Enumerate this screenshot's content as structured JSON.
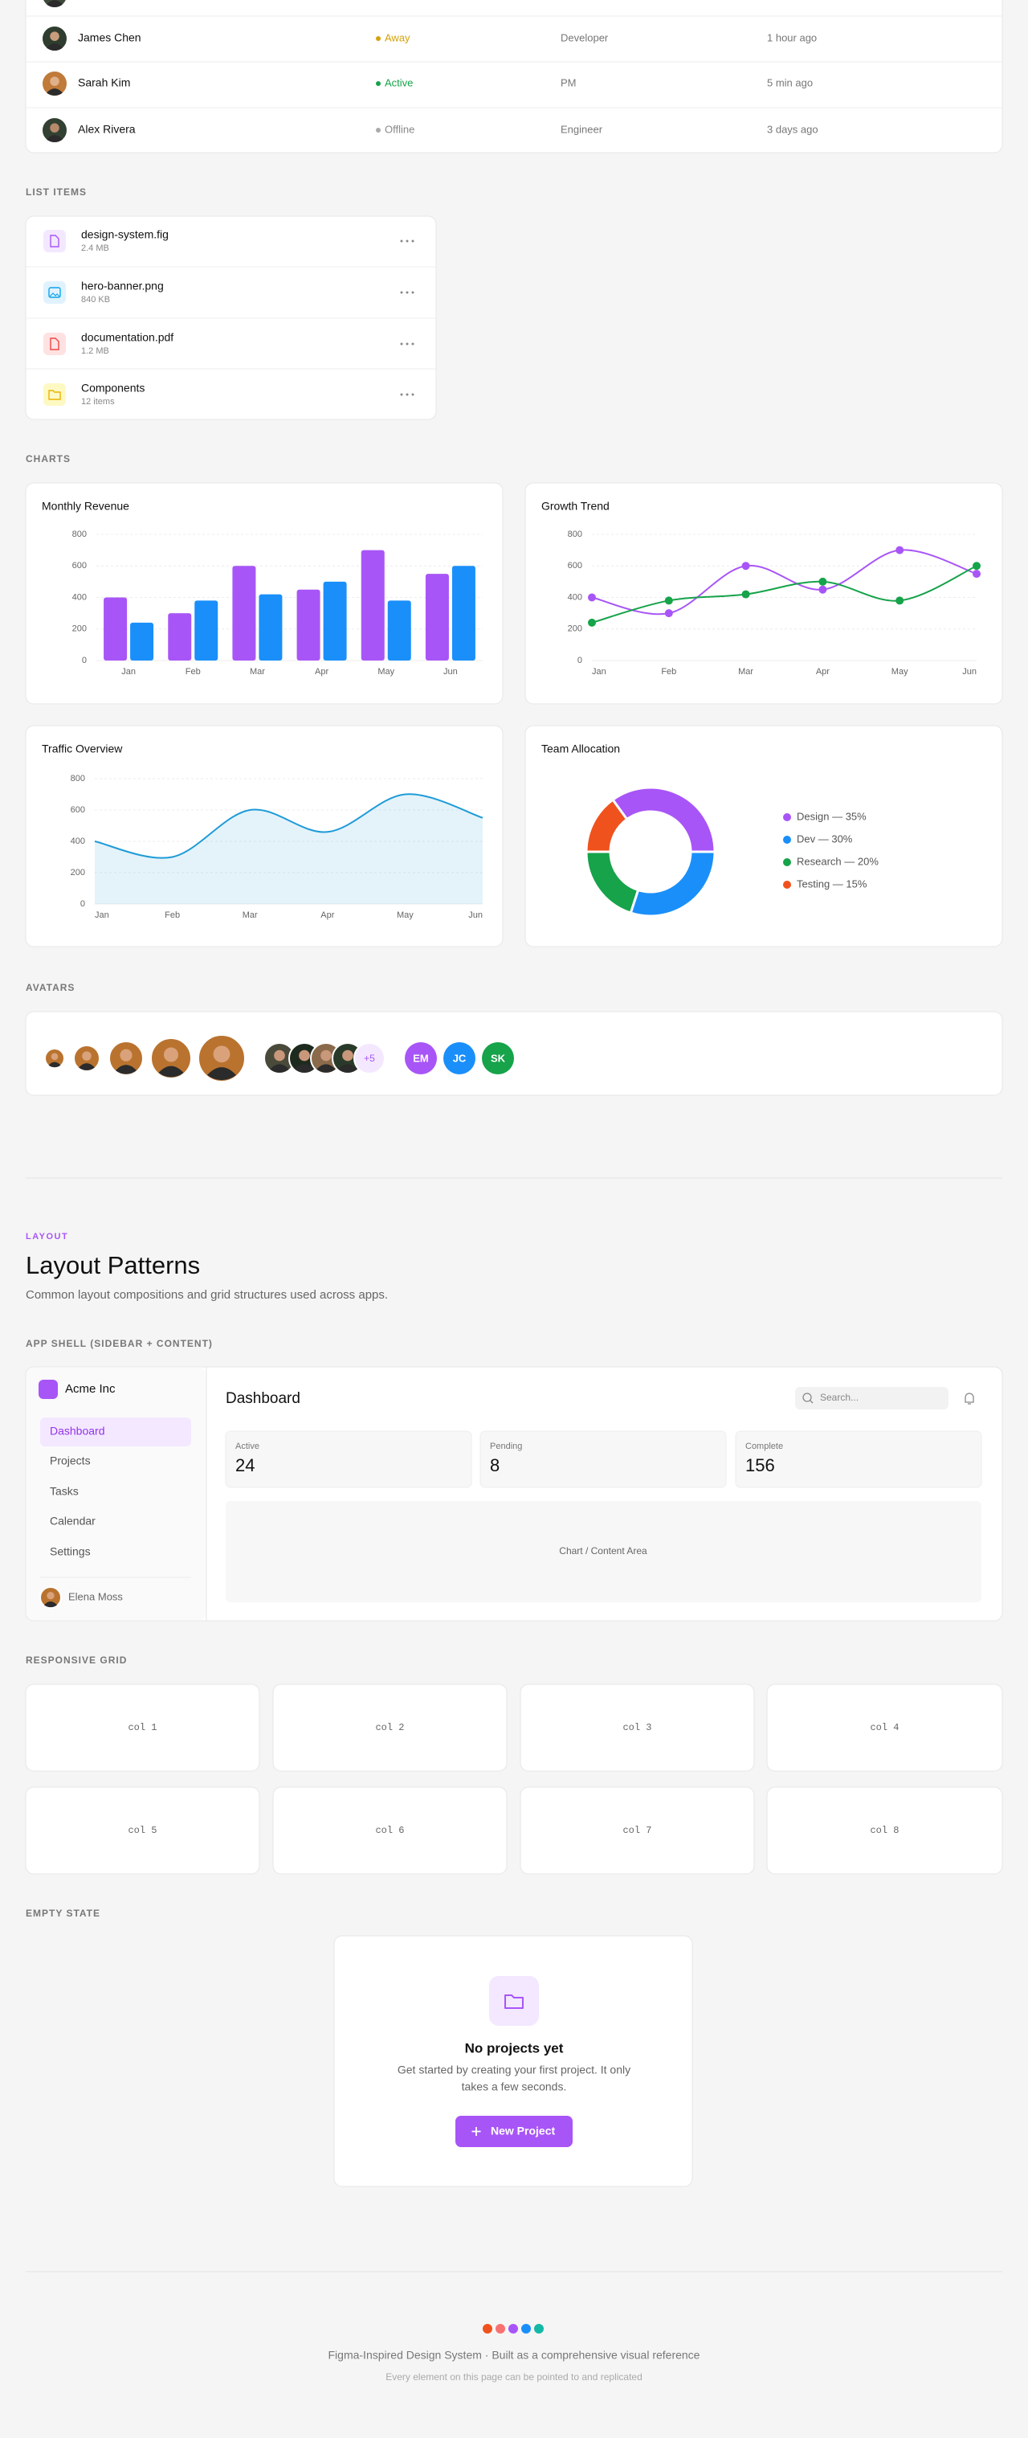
{
  "table": {
    "rows": [
      {
        "name": "James Chen",
        "status": "Away",
        "role": "Developer",
        "last_seen": "1 hour ago"
      },
      {
        "name": "Sarah Kim",
        "status": "Active",
        "role": "PM",
        "last_seen": "5 min ago"
      },
      {
        "name": "Alex Rivera",
        "status": "Offline",
        "role": "Engineer",
        "last_seen": "3 days ago"
      }
    ]
  },
  "list_items": {
    "label": "LIST ITEMS",
    "items": [
      {
        "name": "design-system.fig",
        "meta": "2.4 MB"
      },
      {
        "name": "hero-banner.png",
        "meta": "840 KB"
      },
      {
        "name": "documentation.pdf",
        "meta": "1.2 MB"
      },
      {
        "name": "Components",
        "meta": "12 items"
      }
    ]
  },
  "charts_label": "CHARTS",
  "charts": [
    {
      "type": "bar",
      "title": "Monthly Revenue",
      "categories": [
        "Jan",
        "Feb",
        "Mar",
        "Apr",
        "May",
        "Jun"
      ],
      "series": [
        {
          "color": "#a855f7",
          "values": [
            400,
            300,
            600,
            450,
            700,
            550
          ]
        },
        {
          "color": "#1a8ffa",
          "values": [
            240,
            380,
            420,
            500,
            380,
            600
          ]
        }
      ],
      "ylim": [
        0,
        800
      ],
      "yticks": [
        0,
        200,
        400,
        600,
        800
      ],
      "grid": true
    },
    {
      "type": "line",
      "title": "Growth Trend",
      "categories": [
        "Jan",
        "Feb",
        "Mar",
        "Apr",
        "May",
        "Jun"
      ],
      "series": [
        {
          "color": "#a855f7",
          "values": [
            400,
            300,
            600,
            450,
            700,
            550
          ]
        },
        {
          "color": "#16a34a",
          "values": [
            240,
            380,
            420,
            500,
            380,
            600
          ]
        }
      ],
      "ylim": [
        0,
        800
      ],
      "yticks": [
        0,
        200,
        400,
        600,
        800
      ],
      "grid": true,
      "smooth": true,
      "markers": true
    },
    {
      "type": "area",
      "title": "Traffic Overview",
      "categories": [
        "Jan",
        "Feb",
        "Mar",
        "Apr",
        "May",
        "Jun"
      ],
      "series": [
        {
          "color": "#1e9bd7",
          "values": [
            400,
            300,
            600,
            460,
            700,
            550
          ]
        }
      ],
      "ylim": [
        0,
        800
      ],
      "yticks": [
        0,
        200,
        400,
        600,
        800
      ],
      "grid": true,
      "smooth": true
    },
    {
      "type": "donut",
      "title": "Team Allocation",
      "values": [
        35,
        30,
        20,
        15
      ],
      "legend_labels": [
        "Design — 35%",
        "Dev — 30%",
        "Research — 20%",
        "Testing — 15%"
      ],
      "colors": [
        "#a855f7",
        "#1a8ffa",
        "#16a34a",
        "#f0521e"
      ]
    }
  ],
  "avatars": {
    "label": "AVATARS",
    "overflow": "+5",
    "initials": [
      "EM",
      "JC",
      "SK"
    ]
  },
  "layout": {
    "eyebrow": "LAYOUT",
    "title": "Layout Patterns",
    "subtitle": "Common layout compositions and grid structures used across apps."
  },
  "app_shell": {
    "label": "APP SHELL (SIDEBAR + CONTENT)",
    "brand": "Acme Inc",
    "nav": [
      "Dashboard",
      "Projects",
      "Tasks",
      "Calendar",
      "Settings"
    ],
    "user": "Elena Moss",
    "page_title": "Dashboard",
    "search_placeholder": "Search...",
    "stats": [
      {
        "label": "Active",
        "value": 24
      },
      {
        "label": "Pending",
        "value": 8
      },
      {
        "label": "Complete",
        "value": 156
      }
    ],
    "content_placeholder": "Chart / Content Area"
  },
  "grid": {
    "label": "RESPONSIVE GRID",
    "cells": [
      "col 1",
      "col 2",
      "col 3",
      "col 4",
      "col 5",
      "col 6",
      "col 7",
      "col 8"
    ]
  },
  "empty_state": {
    "label": "EMPTY STATE",
    "title": "No projects yet",
    "description_lines": [
      "Get started by creating your first project. It only",
      "takes a few seconds."
    ],
    "button": "New Project"
  },
  "footer": {
    "title": "Figma-Inspired Design System · Built as a comprehensive visual reference",
    "note": "Every element on this page can be pointed to and replicated"
  }
}
